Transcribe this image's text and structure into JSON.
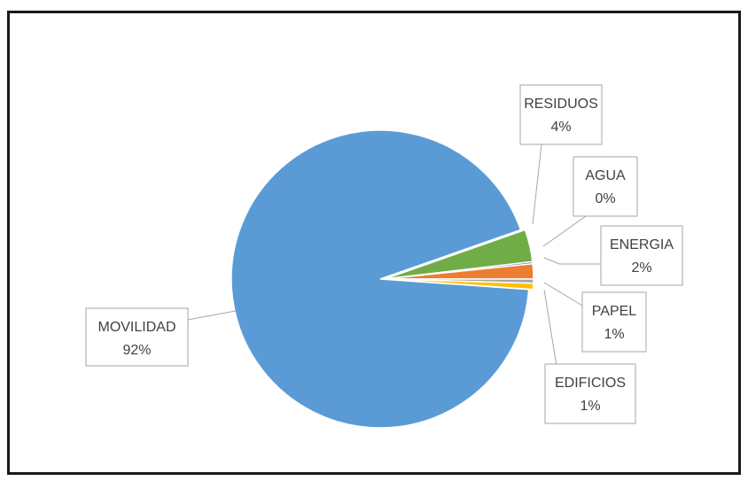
{
  "chart_data": {
    "type": "pie",
    "categories": [
      "MOVILIDAD",
      "RESIDUOS",
      "AGUA",
      "ENERGIA",
      "PAPEL",
      "EDIFICIOS"
    ],
    "values": [
      92,
      4,
      0,
      2,
      1,
      1
    ],
    "value_labels": [
      "92%",
      "4%",
      "0%",
      "2%",
      "1%",
      "1%"
    ],
    "exploded": "MOVILIDAD",
    "start": "MOVILIDAD wedge at the right edge, slices clockwise from RESIDUOS to EDIFICIOS",
    "colors": [
      "#5B9BD5",
      "#70AD47",
      "#4472C4",
      "#ED7D31",
      "#A5A5A5",
      "#FFC000"
    ],
    "legend": "none",
    "data_label_style": "callout boxes with leader lines"
  }
}
